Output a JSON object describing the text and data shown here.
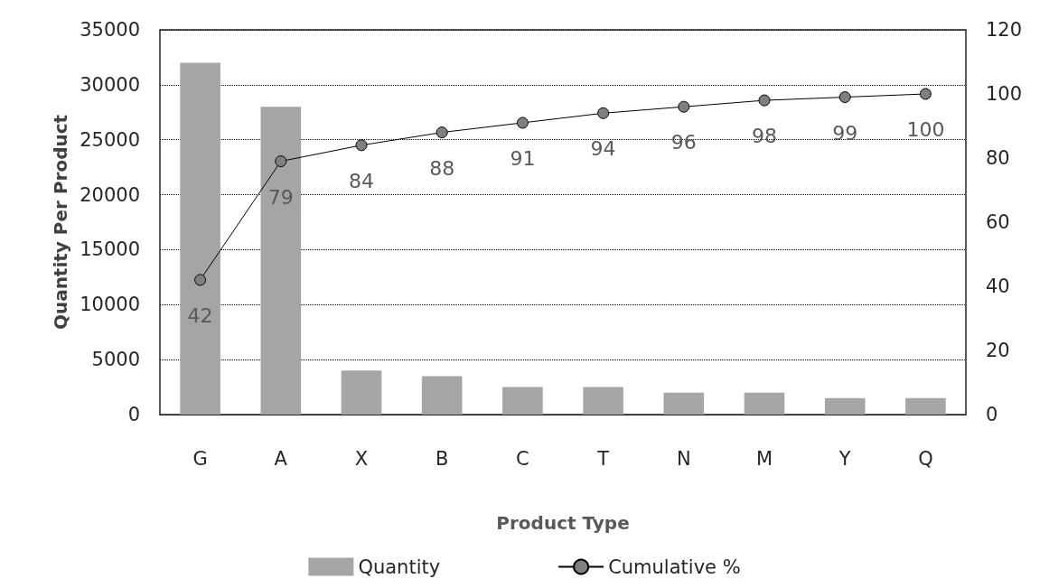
{
  "chart_data": {
    "type": "bar",
    "xlabel": "Product Type",
    "ylabel": "Quantity Per Product",
    "categories": [
      "G",
      "A",
      "X",
      "B",
      "C",
      "T",
      "N",
      "M",
      "Y",
      "Q"
    ],
    "series": [
      {
        "name": "Quantity",
        "color": "#a5a5a5",
        "values": [
          32000,
          28000,
          4000,
          3500,
          2500,
          2500,
          2000,
          2000,
          1500,
          1500
        ]
      },
      {
        "name": "Cumulative %",
        "type": "line",
        "axis": "y2",
        "color": "#7f7f7f",
        "marker": "circle",
        "data_labels": true,
        "values": [
          42,
          79,
          84,
          88,
          91,
          94,
          96,
          98,
          99,
          100
        ]
      }
    ],
    "ylim": [
      0,
      35000
    ],
    "yticks": [
      0,
      5000,
      10000,
      15000,
      20000,
      25000,
      30000,
      35000
    ],
    "y2lim": [
      0,
      120
    ],
    "y2ticks": [
      0,
      20,
      40,
      60,
      80,
      100,
      120
    ],
    "grid": "y",
    "legend": "bottom"
  }
}
